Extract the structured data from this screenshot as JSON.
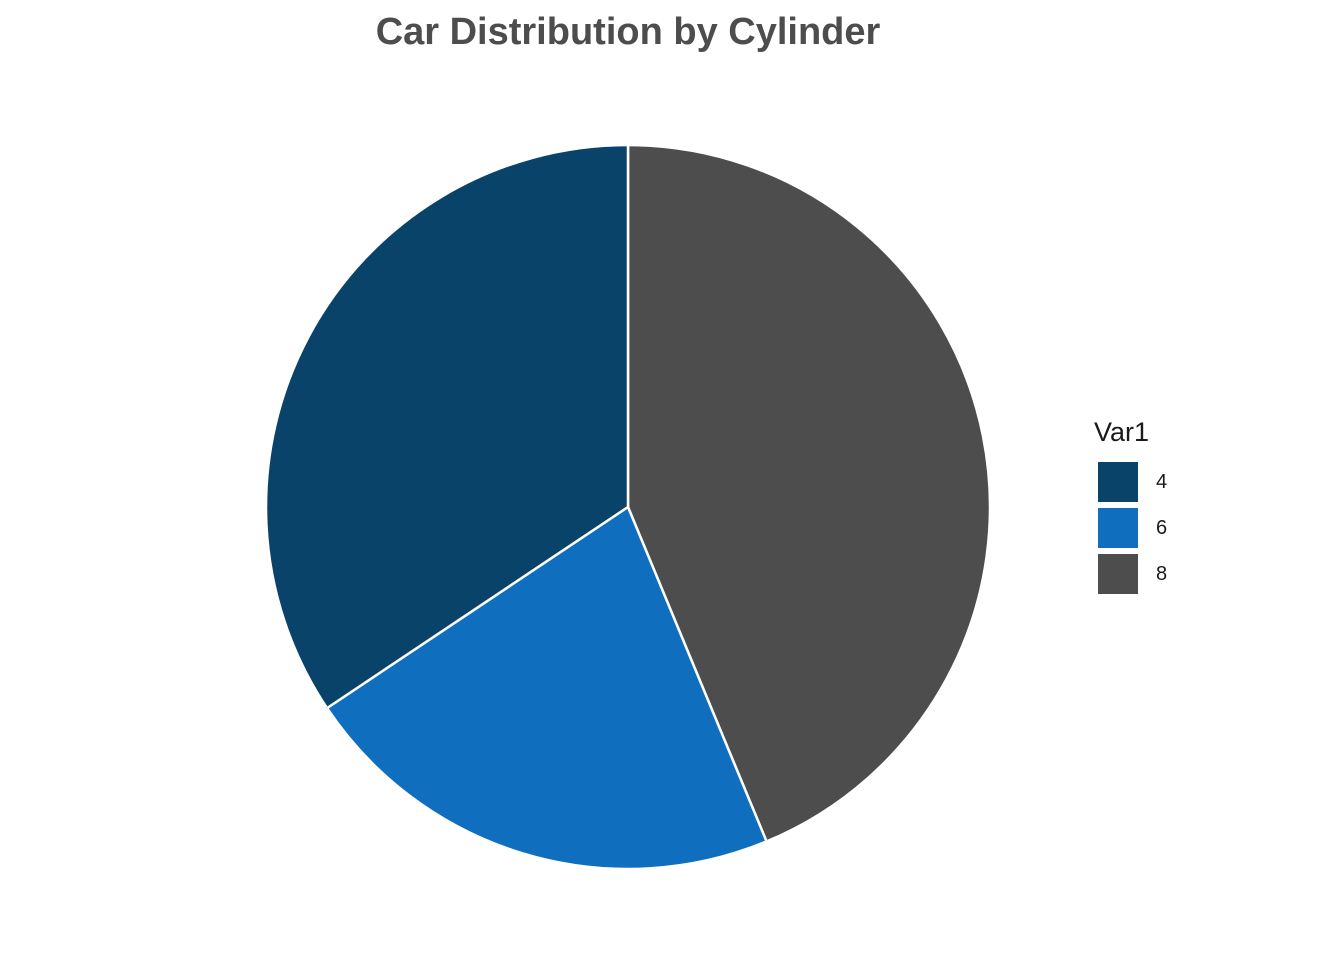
{
  "chart_data": {
    "type": "pie",
    "title": "Car Distribution by Cylinder",
    "legend_title": "Var1",
    "legend_position": "right",
    "categories": [
      "4",
      "6",
      "8"
    ],
    "values": [
      11,
      7,
      14
    ],
    "colors": [
      "#0a4369",
      "#0f6ebe",
      "#4d4d4d"
    ],
    "slice_order": [
      "8",
      "6",
      "4"
    ],
    "start_direction": "top",
    "rotation": "clockwise",
    "slice_border_color": "#ffffff"
  }
}
